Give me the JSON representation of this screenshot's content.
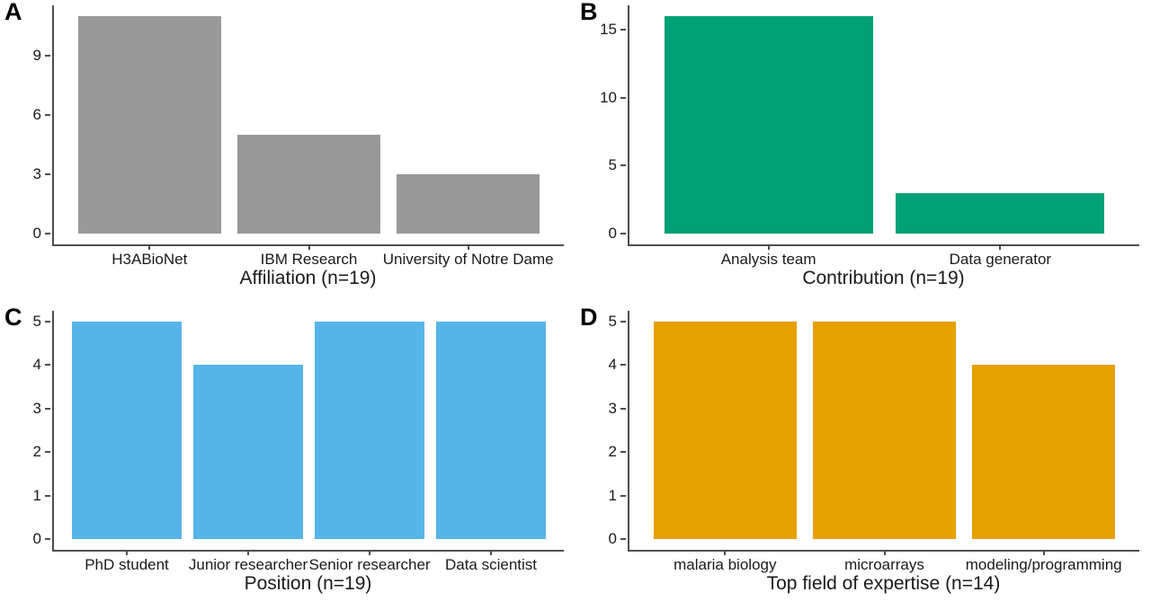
{
  "figure": {
    "background": "#ffffff",
    "axis_color": "#4d4d4d",
    "text_color": "#1a1a1a"
  },
  "chart_data": [
    {
      "type": "bar",
      "panel_label": "A",
      "title": "",
      "xlabel": "Affiliation (n=19)",
      "ylabel": "",
      "categories": [
        "H3ABioNet",
        "IBM Research",
        "University of Notre Dame"
      ],
      "values": [
        11,
        5,
        3
      ],
      "yticks": [
        0,
        3,
        6,
        9
      ],
      "ylim": [
        0,
        11
      ],
      "bar_color": "#999999",
      "grid": false,
      "legend": false
    },
    {
      "type": "bar",
      "panel_label": "B",
      "title": "",
      "xlabel": "Contribution (n=19)",
      "ylabel": "",
      "categories": [
        "Analysis team",
        "Data generator"
      ],
      "values": [
        16,
        3
      ],
      "yticks": [
        0,
        5,
        10,
        15
      ],
      "ylim": [
        0,
        16
      ],
      "bar_color": "#00A076",
      "grid": false,
      "legend": false
    },
    {
      "type": "bar",
      "panel_label": "C",
      "title": "",
      "xlabel": "Position (n=19)",
      "ylabel": "",
      "categories": [
        "PhD student",
        "Junior researcher",
        "Senior researcher",
        "Data scientist"
      ],
      "values": [
        5,
        4,
        5,
        5
      ],
      "yticks": [
        0,
        1,
        2,
        3,
        4,
        5
      ],
      "ylim": [
        0,
        5
      ],
      "bar_color": "#56B4E9",
      "grid": false,
      "legend": false
    },
    {
      "type": "bar",
      "panel_label": "D",
      "title": "",
      "xlabel": "Top field of expertise (n=14)",
      "ylabel": "",
      "categories": [
        "malaria biology",
        "microarrays",
        "modeling/programming"
      ],
      "values": [
        5,
        5,
        4
      ],
      "yticks": [
        0,
        1,
        2,
        3,
        4,
        5
      ],
      "ylim": [
        0,
        5
      ],
      "bar_color": "#E6A000",
      "grid": false,
      "legend": false
    }
  ]
}
